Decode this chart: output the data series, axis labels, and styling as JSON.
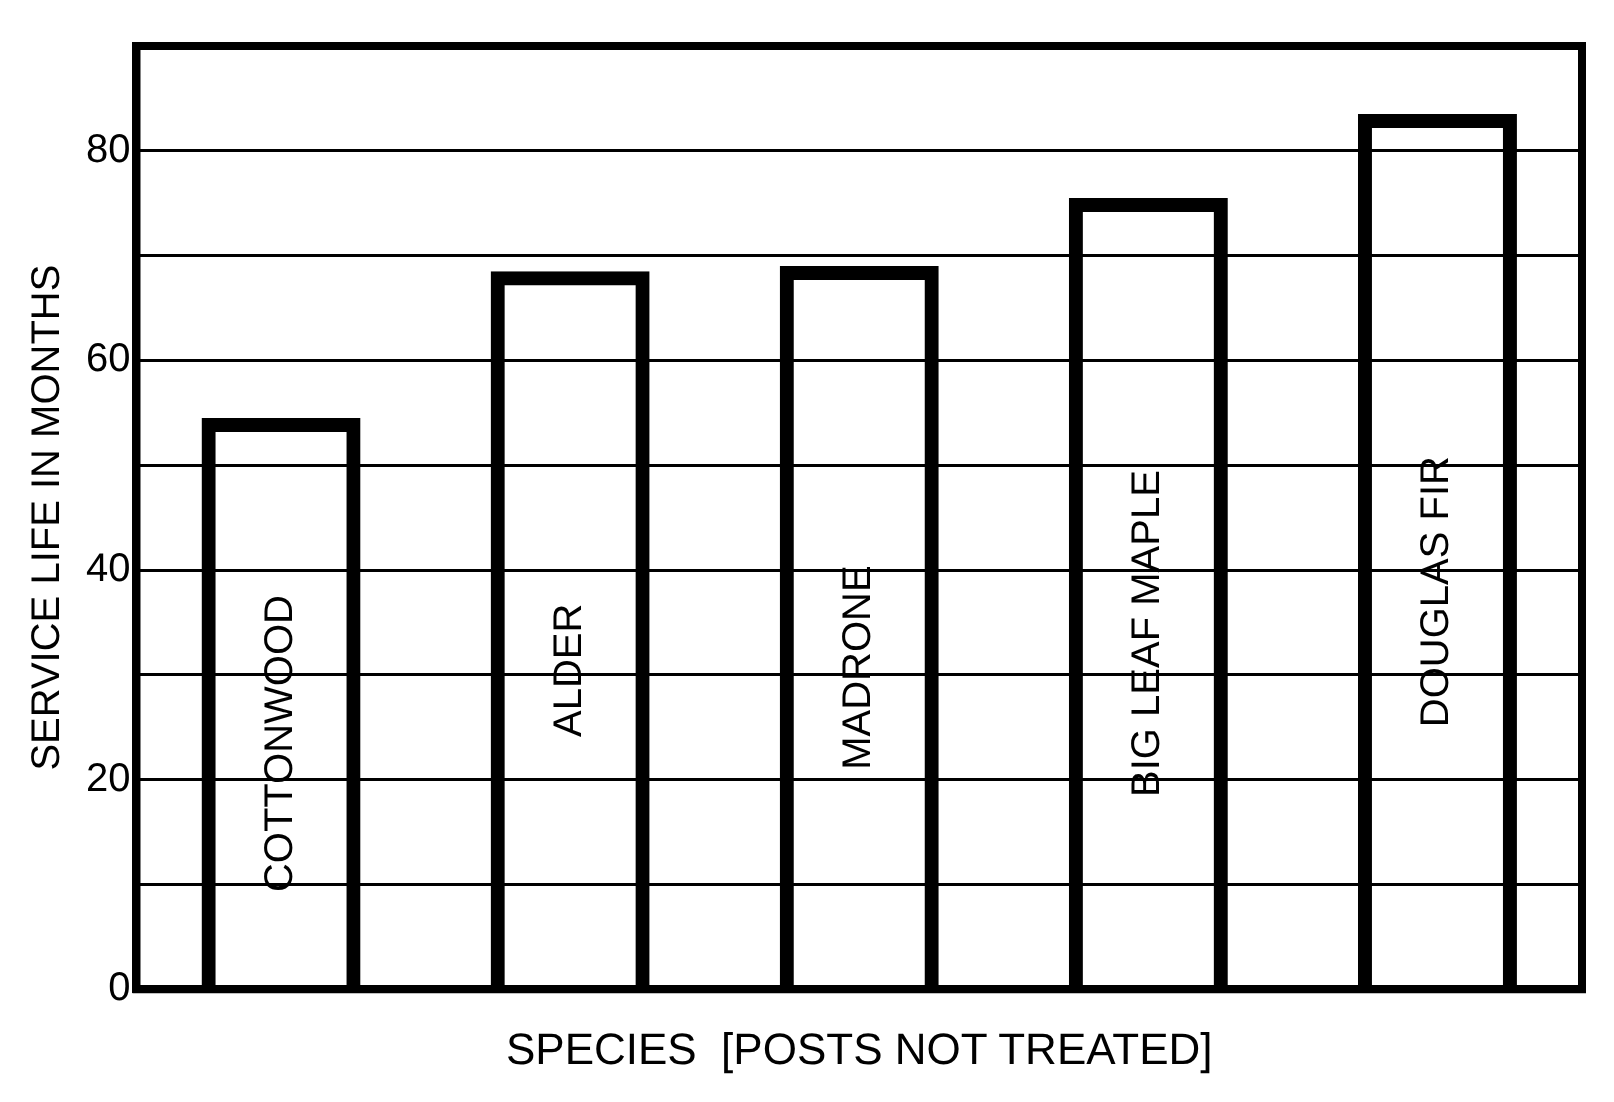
{
  "chart_data": {
    "type": "bar",
    "xlabel": "SPECIES  [POSTS NOT TREATED]",
    "ylabel": "SERVICE LIFE IN MONTHS",
    "categories": [
      "COTTONWOOD",
      "ALDER",
      "MADRONE",
      "BIG LEAF MAPLE",
      "DOUGLAS FIR"
    ],
    "values": [
      54.5,
      68.5,
      69,
      75.5,
      83.5
    ],
    "color": "#000000",
    "ylim": [
      0,
      90
    ],
    "yticks": [
      0,
      {
        "value": 10,
        "label": null
      },
      20,
      {
        "value": 30,
        "label": null
      },
      40,
      {
        "value": 50,
        "label": null
      },
      60,
      {
        "value": 70,
        "label": null
      },
      80
    ],
    "grid": "y",
    "legend": false
  }
}
